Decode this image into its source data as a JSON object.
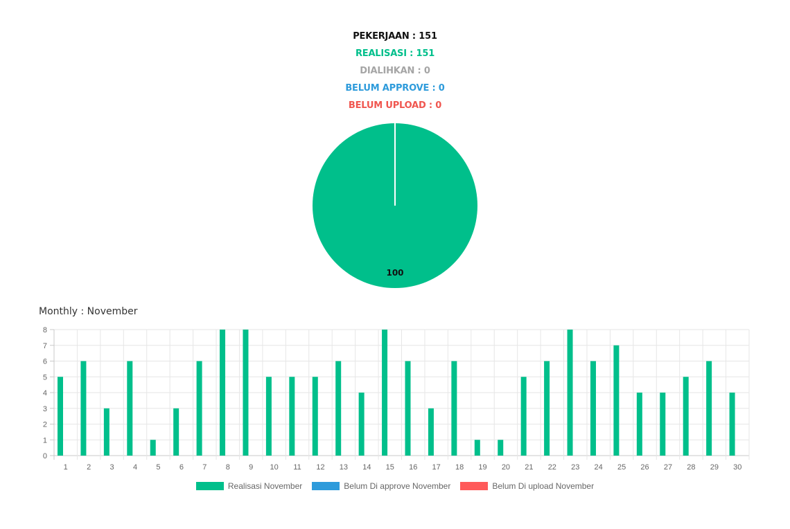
{
  "stats": {
    "pekerjaan": "PEKERJAAN : 151",
    "realisasi": "REALISASI : 151",
    "dialihkan": "DIALIHKAN : 0",
    "belum_approve": "BELUM APPROVE : 0",
    "belum_upload": "BELUM UPLOAD : 0"
  },
  "colors": {
    "black": "#111111",
    "green": "#00BF8B",
    "gray": "#A5A5A5",
    "blue": "#2E9BDB",
    "red": "#F0564F"
  },
  "monthly_title": "Monthly : November",
  "chart_data": [
    {
      "type": "pie",
      "slices": [
        {
          "label": "Realisasi",
          "value": 100,
          "color": "#00BF8B"
        }
      ],
      "data_labels": [
        "100"
      ]
    },
    {
      "type": "bar",
      "categories": [
        "1",
        "2",
        "3",
        "4",
        "5",
        "6",
        "7",
        "8",
        "9",
        "10",
        "11",
        "12",
        "13",
        "14",
        "15",
        "16",
        "17",
        "18",
        "19",
        "20",
        "21",
        "22",
        "23",
        "24",
        "25",
        "26",
        "27",
        "28",
        "29",
        "30"
      ],
      "series": [
        {
          "name": "Realisasi November",
          "color": "#00BF8B",
          "values": [
            5,
            6,
            3,
            6,
            1,
            3,
            6,
            8,
            8,
            5,
            5,
            5,
            6,
            4,
            8,
            6,
            3,
            6,
            1,
            1,
            5,
            6,
            8,
            6,
            7,
            4,
            4,
            5,
            6,
            4
          ]
        },
        {
          "name": "Belum Di approve November",
          "color": "#2E9BDB",
          "values": [
            0,
            0,
            0,
            0,
            0,
            0,
            0,
            0,
            0,
            0,
            0,
            0,
            0,
            0,
            0,
            0,
            0,
            0,
            0,
            0,
            0,
            0,
            0,
            0,
            0,
            0,
            0,
            0,
            0,
            0
          ]
        },
        {
          "name": "Belum Di upload November",
          "color": "#FF5A5A",
          "values": [
            0,
            0,
            0,
            0,
            0,
            0,
            0,
            0,
            0,
            0,
            0,
            0,
            0,
            0,
            0,
            0,
            0,
            0,
            0,
            0,
            0,
            0,
            0,
            0,
            0,
            0,
            0,
            0,
            0,
            0
          ]
        }
      ],
      "ylim": [
        0,
        8
      ],
      "yticks": [
        "0",
        "1",
        "2",
        "3",
        "4",
        "5",
        "6",
        "7",
        "8"
      ],
      "grid": true,
      "legend": "bottom"
    }
  ]
}
